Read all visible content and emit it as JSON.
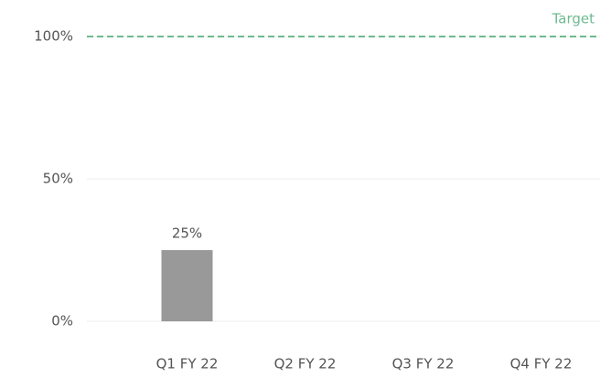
{
  "chart_data": {
    "type": "bar",
    "categories": [
      "Q1 FY 22",
      "Q2 FY 22",
      "Q3 FY 22",
      "Q4 FY 22"
    ],
    "values": [
      25,
      null,
      null,
      null
    ],
    "value_labels": [
      "25%",
      null,
      null,
      null
    ],
    "color": "#999999",
    "ylim": [
      0,
      100
    ],
    "yticks": [
      {
        "value": 0,
        "label": "0%"
      },
      {
        "value": 50,
        "label": "50%"
      },
      {
        "value": 100,
        "label": "100%"
      }
    ],
    "grid": true,
    "target": {
      "value": 100,
      "label": "Target",
      "color": "#6fba8f"
    }
  }
}
